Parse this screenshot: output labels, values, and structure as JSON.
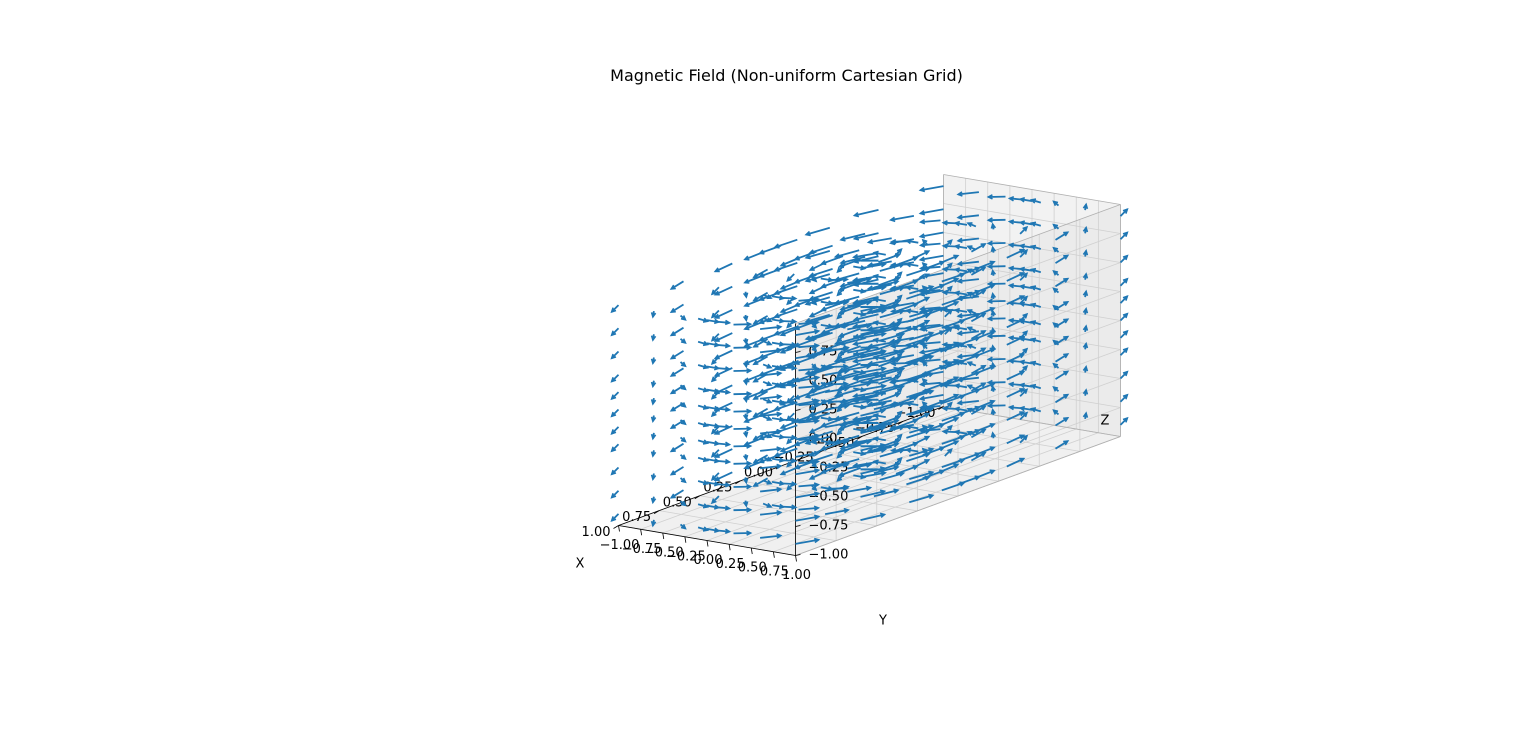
{
  "chart_data": {
    "type": "quiver3d",
    "title": "Magnetic Field (Non-uniform Cartesian Grid)",
    "xlabel": "X",
    "ylabel": "Y",
    "zlabel": "Z",
    "xlim": [
      -1.0,
      1.0
    ],
    "ylim": [
      -1.0,
      1.0
    ],
    "zlim": [
      -1.0,
      1.0
    ],
    "x_ticks": [
      "−1.00",
      "−0.75",
      "−0.50",
      "−0.25",
      "0.00",
      "0.25",
      "0.50",
      "0.75",
      "1.00"
    ],
    "y_ticks": [
      "−1.00",
      "−0.75",
      "−0.50",
      "−0.25",
      "0.00",
      "0.25",
      "0.50",
      "0.75",
      "1.00"
    ],
    "z_ticks": [
      "−1.00",
      "−0.75",
      "−0.50",
      "−0.25",
      "0.00",
      "0.25",
      "0.50",
      "0.75"
    ],
    "grid": true,
    "series": [
      {
        "color": "#1f77b4",
        "grid_x": [
          -1.0,
          -0.6,
          -0.3,
          -0.1,
          0.0,
          0.1,
          0.3,
          0.6,
          1.0
        ],
        "grid_y": [
          -1.0,
          -0.6,
          -0.3,
          -0.1,
          0.0,
          0.1,
          0.3,
          0.6,
          1.0
        ],
        "grid_z": [
          -0.9,
          -0.7,
          -0.5,
          -0.3,
          -0.15,
          0.0,
          0.15,
          0.3,
          0.5,
          0.7,
          0.9
        ],
        "field": "B = (-y, x, 0) / (x^2 + y^2), circulating about the z axis"
      }
    ]
  }
}
